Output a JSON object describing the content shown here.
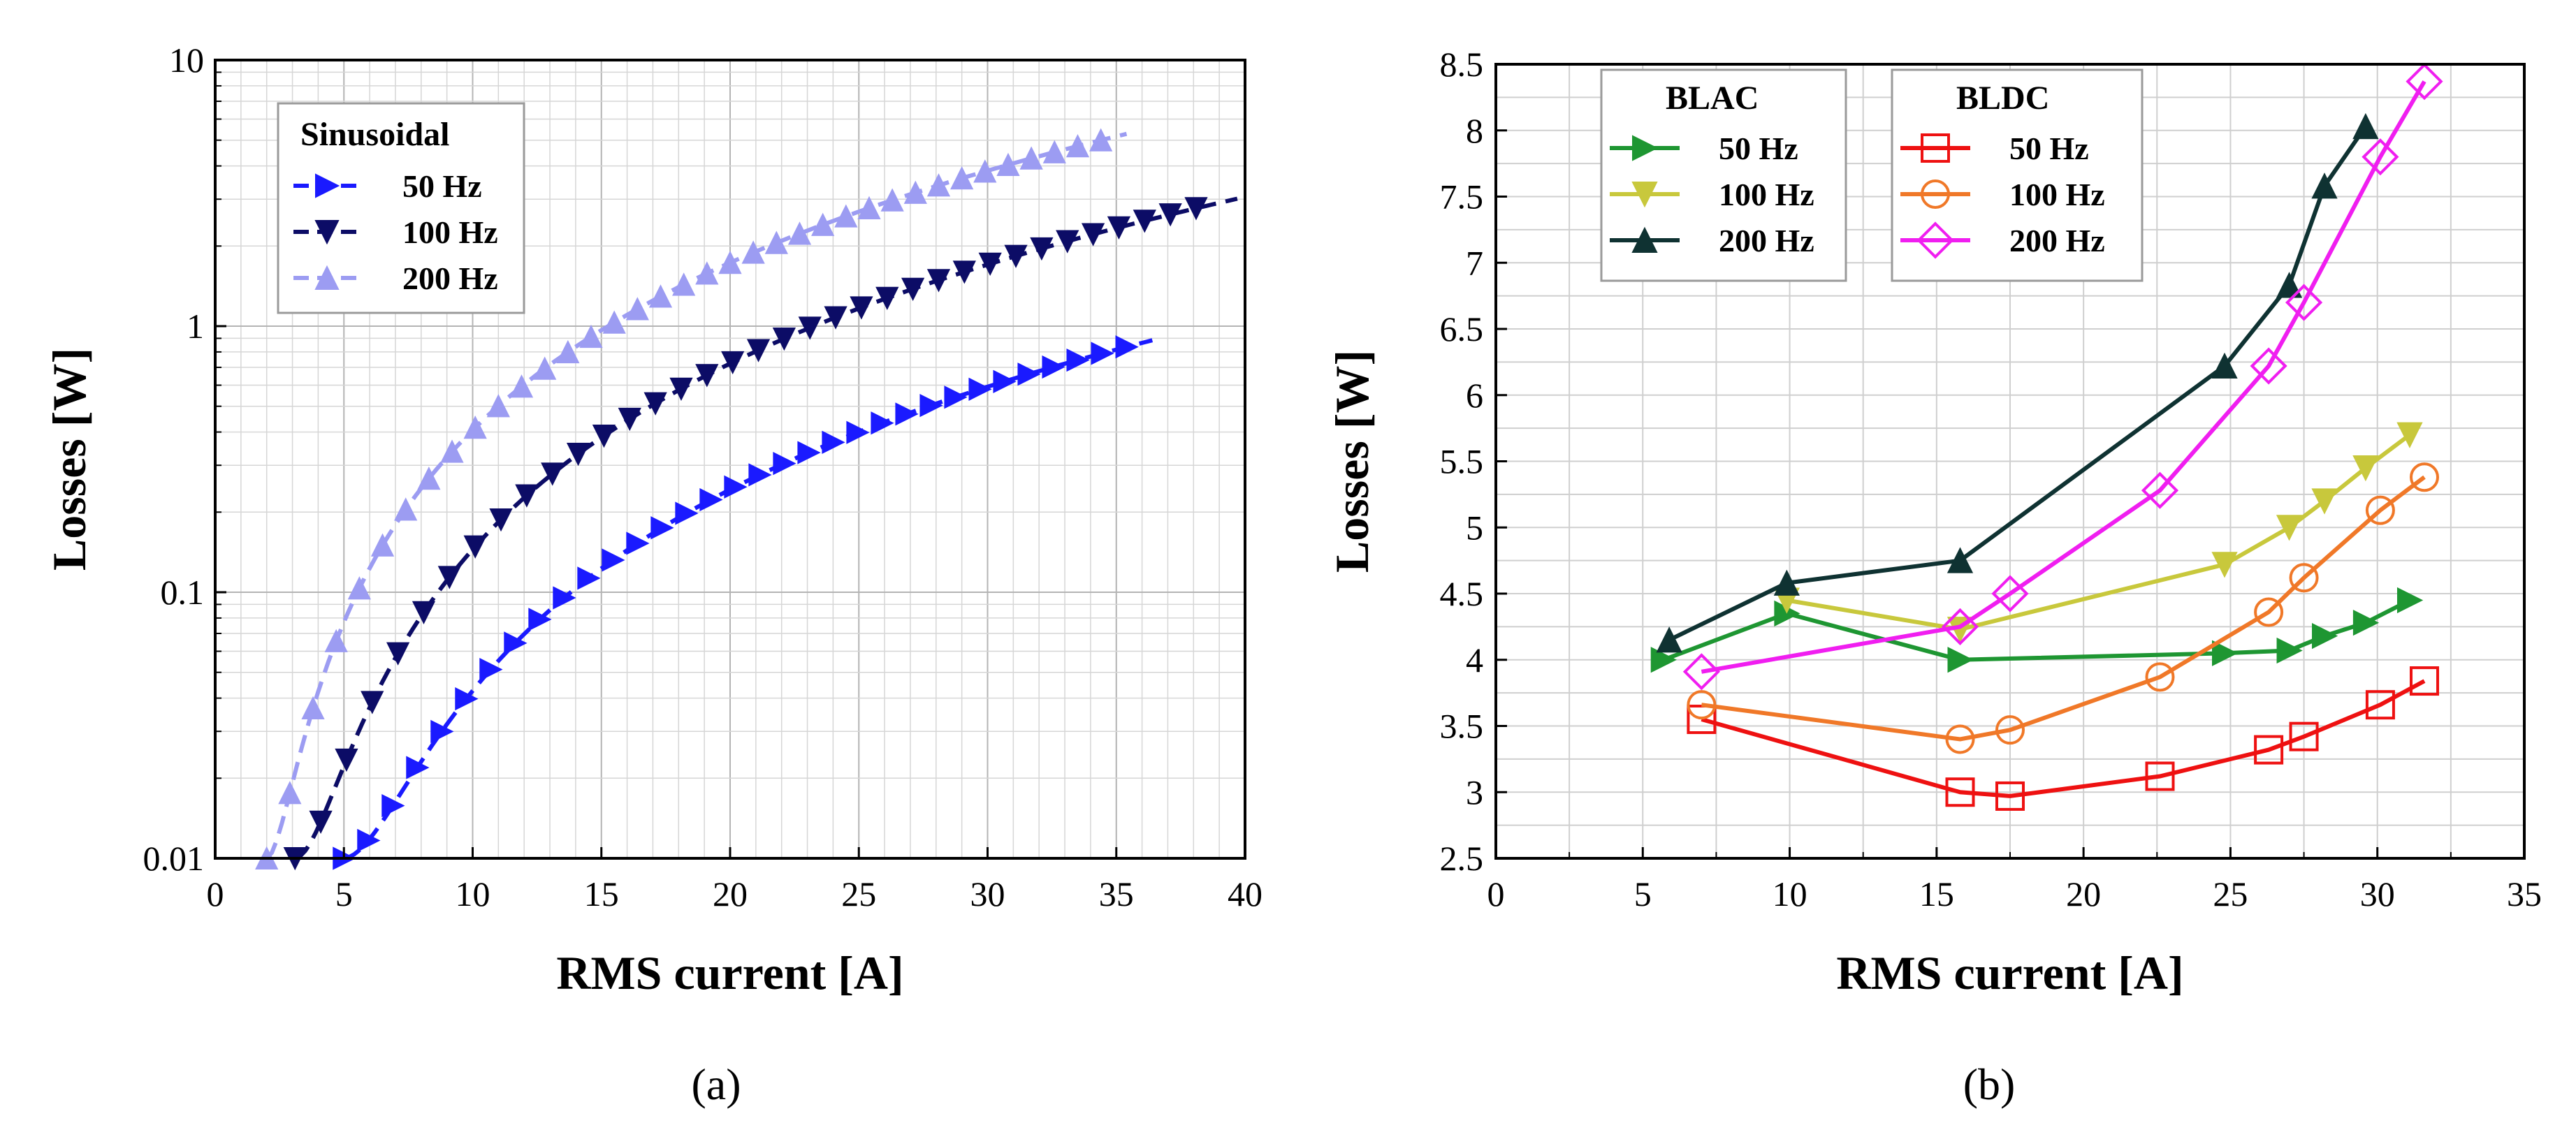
{
  "chart_data": [
    {
      "id": "a",
      "type": "line",
      "caption": "(a)",
      "title": "",
      "xlabel": "RMS current [A]",
      "ylabel": "Losses [W]",
      "xlim": [
        0,
        40
      ],
      "ylim": [
        0.01,
        10
      ],
      "yscale": "log",
      "x_ticks": [
        0,
        5,
        10,
        15,
        20,
        25,
        30,
        35,
        40
      ],
      "y_ticks": [
        0.01,
        0.1,
        1,
        10
      ],
      "y_tick_labels": [
        "0.01",
        "0.1",
        "1",
        "10"
      ],
      "grid": true,
      "legend": {
        "title": "Sinusoidal",
        "position": "top-left"
      },
      "series": [
        {
          "name": "50 Hz",
          "color": "#1a1aff",
          "marker": "triangle-right",
          "dash": true,
          "f0": 5.0,
          "k": 0.00183,
          "n": 1.79,
          "x_start": 5.0,
          "x_end": 36.5,
          "marker_step": 0.95
        },
        {
          "name": "100 Hz",
          "color": "#0c0c66",
          "marker": "triangle-down",
          "dash": true,
          "f0": 3.1,
          "k": 0.00371,
          "n": 1.86,
          "x_start": 3.1,
          "x_end": 39.7,
          "marker_step": 1.0
        },
        {
          "name": "200 Hz",
          "color": "#9c9cf2",
          "marker": "triangle-up",
          "dash": true,
          "f0": 2.0,
          "k": 0.0092,
          "n": 1.81,
          "x_start": 2.0,
          "x_end": 35.5,
          "marker_step": 0.9
        }
      ]
    },
    {
      "id": "b",
      "type": "line",
      "caption": "(b)",
      "title": "",
      "xlabel": "RMS current [A]",
      "ylabel": "Losses [W]",
      "xlim": [
        0,
        35
      ],
      "ylim": [
        2.5,
        8.5
      ],
      "x_ticks": [
        0,
        5,
        10,
        15,
        20,
        25,
        30,
        35
      ],
      "y_ticks": [
        2.5,
        3,
        3.5,
        4,
        4.5,
        5,
        5.5,
        6,
        6.5,
        7,
        7.5,
        8,
        8.5
      ],
      "grid": true,
      "legend_groups": [
        {
          "title": "BLAC",
          "position": "top-left",
          "series": [
            0,
            1,
            2
          ]
        },
        {
          "title": "BLDC",
          "position": "top-center",
          "series": [
            3,
            4,
            5
          ]
        }
      ],
      "series": [
        {
          "name": "50 Hz",
          "group": "BLAC",
          "color": "#1e9632",
          "marker": "triangle-right",
          "filled": true,
          "x": [
            5.7,
            9.9,
            15.8,
            24.8,
            27.0,
            28.2,
            29.6,
            31.1
          ],
          "y": [
            4.0,
            4.35,
            4.0,
            4.05,
            4.07,
            4.18,
            4.28,
            4.45
          ]
        },
        {
          "name": "100 Hz",
          "group": "BLAC",
          "color": "#c8c83c",
          "marker": "triangle-down",
          "filled": true,
          "x": [
            9.9,
            15.8,
            24.8,
            27.0,
            28.2,
            29.6,
            31.1
          ],
          "y": [
            4.45,
            4.23,
            4.72,
            5.0,
            5.2,
            5.45,
            5.7
          ]
        },
        {
          "name": "200 Hz",
          "group": "BLAC",
          "color": "#0f3232",
          "marker": "triangle-up",
          "filled": true,
          "x": [
            5.9,
            9.9,
            15.8,
            24.8,
            27.0,
            28.2,
            29.6
          ],
          "y": [
            4.15,
            4.58,
            4.75,
            6.22,
            6.83,
            7.58,
            8.03
          ]
        },
        {
          "name": "50 Hz",
          "group": "BLDC",
          "color": "#ee1111",
          "marker": "square",
          "filled": false,
          "x": [
            7.0,
            15.8,
            17.5,
            22.6,
            26.3,
            27.5,
            30.1,
            31.6
          ],
          "y": [
            3.55,
            3.0,
            2.97,
            3.12,
            3.32,
            3.42,
            3.66,
            3.84
          ]
        },
        {
          "name": "100 Hz",
          "group": "BLDC",
          "color": "#f07828",
          "marker": "circle",
          "filled": false,
          "x": [
            7.0,
            15.8,
            17.5,
            22.6,
            26.3,
            27.5,
            30.1,
            31.6
          ],
          "y": [
            3.66,
            3.4,
            3.47,
            3.87,
            4.36,
            4.62,
            5.13,
            5.38
          ]
        },
        {
          "name": "200 Hz",
          "group": "BLDC",
          "color": "#f01ef0",
          "marker": "diamond",
          "filled": false,
          "x": [
            7.0,
            15.8,
            17.5,
            22.6,
            26.3,
            27.5,
            30.1,
            31.6
          ],
          "y": [
            3.91,
            4.25,
            4.5,
            5.28,
            6.22,
            6.7,
            7.8,
            8.37
          ]
        }
      ]
    }
  ]
}
